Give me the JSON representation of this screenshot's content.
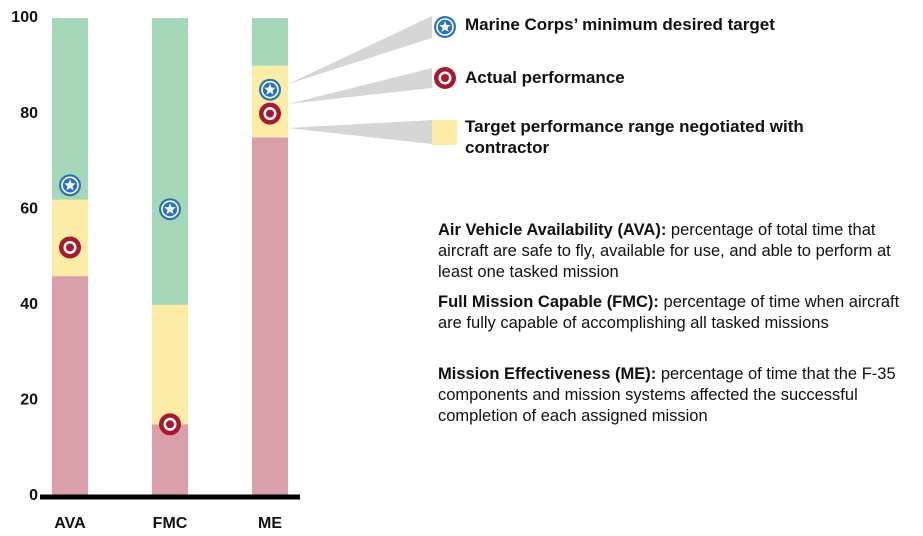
{
  "chart_data": {
    "type": "stacked_bar",
    "categories": [
      "AVA",
      "FMC",
      "ME"
    ],
    "series": [
      {
        "color": "#d9a0aa",
        "values": [
          46,
          15,
          75
        ]
      },
      {
        "name": "Target performance range negotiated with contractor",
        "color": "#fdeca6",
        "values": [
          16,
          25,
          15
        ]
      },
      {
        "color": "#a5d7b8",
        "values": [
          38,
          60,
          10
        ]
      }
    ],
    "markers": [
      {
        "name": "Marine Corps’ minimum desired target",
        "symbol": "star",
        "color": "#2b73b8",
        "values": [
          65,
          60,
          85
        ]
      },
      {
        "name": "Actual performance",
        "symbol": "target",
        "color": "#a8182e",
        "values": [
          52,
          15,
          80
        ]
      }
    ],
    "ylim": [
      0,
      100
    ],
    "yticks": [
      0,
      20,
      40,
      60,
      80,
      100
    ],
    "grid": false,
    "definitions": [
      {
        "term": "Air Vehicle Availability (AVA):",
        "text": "percentage of total time that aircraft are safe to fly, available for use, and able to perform at least one tasked mission"
      },
      {
        "term": "Full Mission Capable (FMC):",
        "text": "percentage of time when aircraft are fully capable of accomplishing all tasked missions"
      },
      {
        "term": "Mission Effectiveness (ME):",
        "text": "percentage of time that the F-35 components and mission systems affected the successful completion of each assigned mission"
      }
    ]
  }
}
